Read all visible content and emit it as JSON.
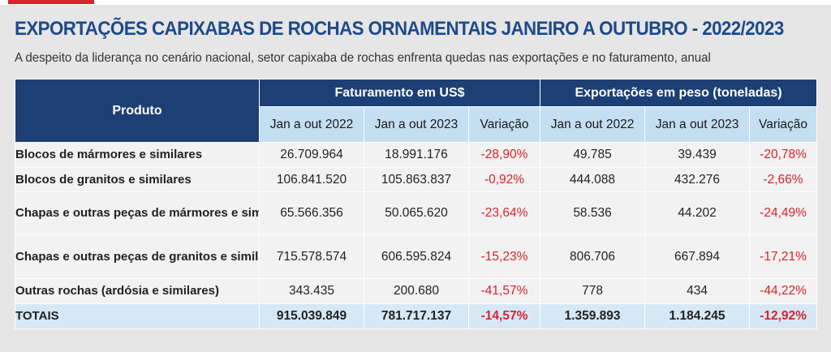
{
  "title": "EXPORTAÇÕES CAPIXABAS DE ROCHAS ORNAMENTAIS JANEIRO A OUTUBRO - 2022/2023",
  "subtitle": "A despeito da liderança no cenário nacional, setor capixaba de rochas enfrenta quedas nas exportações e no faturamento, anual",
  "colors": {
    "title": "#1d4a8a",
    "header": "#1d3f74",
    "subheader": "#c4def2",
    "negative": "#d8232a",
    "totals_row": "#d6e8f6"
  },
  "chart_data": {
    "type": "table",
    "product_header": "Produto",
    "groups": [
      {
        "label": "Faturamento em US$",
        "columns": [
          "Jan a out 2022",
          "Jan a out 2023",
          "Variação"
        ]
      },
      {
        "label": "Exportações em peso (toneladas)",
        "columns": [
          "Jan a out 2022",
          "Jan a out 2023",
          "Variação"
        ]
      }
    ],
    "rows": [
      {
        "product": "Blocos de mármores e similares",
        "values": [
          "26.709.964",
          "18.991.176",
          "-28,90%",
          "49.785",
          "39.439",
          "-20,78%"
        ]
      },
      {
        "product": "Blocos de granitos e similares",
        "values": [
          "106.841.520",
          "105.863.837",
          "-0,92%",
          "444.088",
          "432.276",
          "-2,66%"
        ]
      },
      {
        "product": "Chapas e outras peças de mármores e similares",
        "values": [
          "65.566.356",
          "50.065.620",
          "-23,64%",
          "58.536",
          "44.202",
          "-24,49%"
        ]
      },
      {
        "product": "Chapas e outras peças de granitos e similares",
        "values": [
          "715.578.574",
          "606.595.824",
          "-15,23%",
          "806.706",
          "667.894",
          "-17,21%"
        ]
      },
      {
        "product": "Outras rochas (ardósia e similares)",
        "values": [
          "343.435",
          "200.680",
          "-41,57%",
          "778",
          "434",
          "-44,22%"
        ]
      }
    ],
    "totals": {
      "label": "TOTAIS",
      "values": [
        "915.039.849",
        "781.717.137",
        "-14,57%",
        "1.359.893",
        "1.184.245",
        "-12,92%"
      ]
    }
  }
}
